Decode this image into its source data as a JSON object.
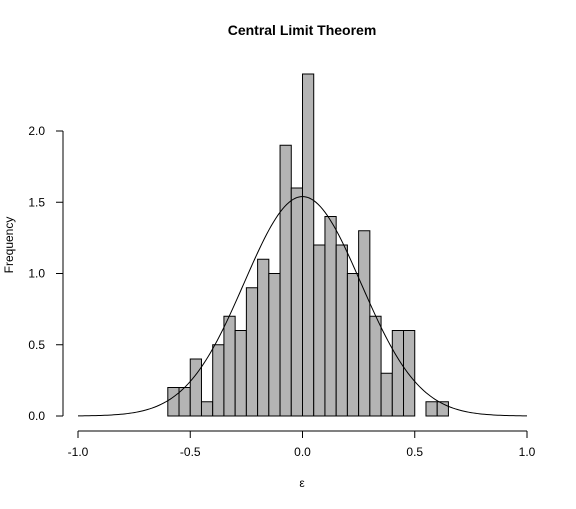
{
  "chart_data": {
    "type": "bar",
    "title": "Central Limit Theorem",
    "xlabel": "ε",
    "ylabel": "Frequency",
    "xlim": [
      -1.0,
      1.0
    ],
    "ylim": [
      0,
      2.4
    ],
    "x_ticks": [
      -1.0,
      -0.5,
      0.0,
      0.5,
      1.0
    ],
    "x_tick_labels": [
      "-1.0",
      "-0.5",
      "0.0",
      "0.5",
      "1.0"
    ],
    "y_ticks": [
      0.0,
      0.5,
      1.0,
      1.5,
      2.0
    ],
    "y_tick_labels": [
      "0.0",
      "0.5",
      "1.0",
      "1.5",
      "2.0"
    ],
    "grid": false,
    "bin_width": 0.05,
    "bins": [
      {
        "x0": -0.6,
        "x1": -0.55,
        "value": 0.2
      },
      {
        "x0": -0.55,
        "x1": -0.5,
        "value": 0.2
      },
      {
        "x0": -0.5,
        "x1": -0.45,
        "value": 0.4
      },
      {
        "x0": -0.45,
        "x1": -0.4,
        "value": 0.1
      },
      {
        "x0": -0.4,
        "x1": -0.35,
        "value": 0.5
      },
      {
        "x0": -0.35,
        "x1": -0.3,
        "value": 0.7
      },
      {
        "x0": -0.3,
        "x1": -0.25,
        "value": 0.6
      },
      {
        "x0": -0.25,
        "x1": -0.2,
        "value": 0.9
      },
      {
        "x0": -0.2,
        "x1": -0.15,
        "value": 1.1
      },
      {
        "x0": -0.15,
        "x1": -0.1,
        "value": 1.0
      },
      {
        "x0": -0.1,
        "x1": -0.05,
        "value": 1.9
      },
      {
        "x0": -0.05,
        "x1": 0.0,
        "value": 1.6
      },
      {
        "x0": 0.0,
        "x1": 0.05,
        "value": 2.4
      },
      {
        "x0": 0.05,
        "x1": 0.1,
        "value": 1.2
      },
      {
        "x0": 0.1,
        "x1": 0.15,
        "value": 1.4
      },
      {
        "x0": 0.15,
        "x1": 0.2,
        "value": 1.2
      },
      {
        "x0": 0.2,
        "x1": 0.25,
        "value": 1.0
      },
      {
        "x0": 0.25,
        "x1": 0.3,
        "value": 1.3
      },
      {
        "x0": 0.3,
        "x1": 0.35,
        "value": 0.7
      },
      {
        "x0": 0.35,
        "x1": 0.4,
        "value": 0.3
      },
      {
        "x0": 0.4,
        "x1": 0.45,
        "value": 0.6
      },
      {
        "x0": 0.45,
        "x1": 0.5,
        "value": 0.6
      },
      {
        "x0": 0.5,
        "x1": 0.55,
        "value": 0.0
      },
      {
        "x0": 0.55,
        "x1": 0.6,
        "value": 0.1
      },
      {
        "x0": 0.6,
        "x1": 0.65,
        "value": 0.1
      }
    ],
    "curve": {
      "type": "normal-density",
      "mean": 0.0,
      "sd": 0.26,
      "x_range": [
        -1.0,
        1.0
      ],
      "peak": 1.54
    },
    "colors": {
      "bar_fill": "#b4b4b4",
      "bar_stroke": "#000000",
      "curve": "#000000",
      "axis": "#000000"
    }
  }
}
